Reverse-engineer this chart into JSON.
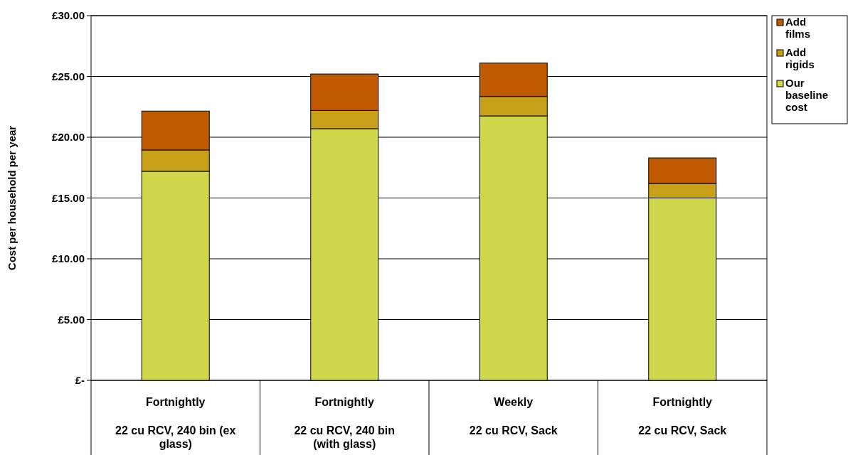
{
  "chart_data": {
    "type": "bar",
    "stacked": true,
    "ylabel": "Cost per household per year",
    "categories": [
      "Fortnightly\n22 cu RCV, 240 bin (ex glass)",
      "Fortnightly\n22 cu RCV, 240 bin (with glass)",
      "Weekly\n22 cu RCV, Sack",
      "Fortnightly\n22 cu RCV, Sack"
    ],
    "series": [
      {
        "name": "Our baseline cost",
        "color": "#cfd84a",
        "values": [
          17.2,
          20.7,
          21.75,
          15.0
        ]
      },
      {
        "name": "Add rigids",
        "color": "#c9a118",
        "values": [
          1.75,
          1.5,
          1.6,
          1.2
        ]
      },
      {
        "name": "Add films",
        "color": "#c05a00",
        "values": [
          3.2,
          3.0,
          2.75,
          2.1
        ]
      }
    ],
    "ylim": [
      0,
      30
    ],
    "yticks": [
      {
        "value": 0,
        "label": "£-"
      },
      {
        "value": 5,
        "label": "£5.00"
      },
      {
        "value": 10,
        "label": "£10.00"
      },
      {
        "value": 15,
        "label": "£15.00"
      },
      {
        "value": 20,
        "label": "£20.00"
      },
      {
        "value": 25,
        "label": "£25.00"
      },
      {
        "value": 30,
        "label": "£30.00"
      }
    ],
    "grid": "y",
    "legend": "right"
  }
}
